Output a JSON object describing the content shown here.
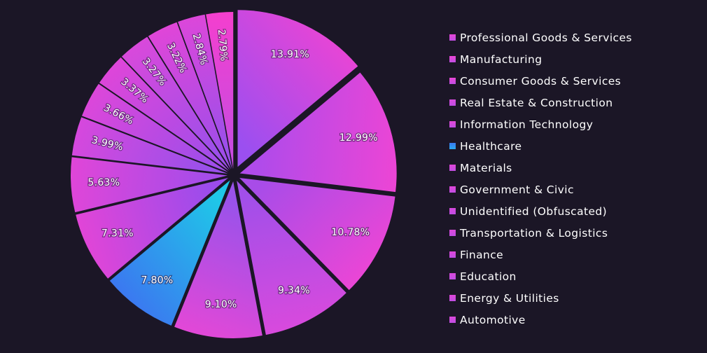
{
  "chart_data": {
    "type": "pie",
    "slices": [
      {
        "label": "Professional Goods & Services",
        "value": 13.91,
        "display": "13.91%",
        "color_from": "#9b4ff0",
        "color_to": "#e645d6"
      },
      {
        "label": "Manufacturing",
        "value": 12.99,
        "display": "12.99%",
        "color_from": "#b04bea",
        "color_to": "#ec45d5"
      },
      {
        "label": "Consumer Goods & Services",
        "value": 10.78,
        "display": "10.78%",
        "color_from": "#a84ce8",
        "color_to": "#ea46d6"
      },
      {
        "label": "Real Estate & Construction",
        "value": 9.34,
        "display": "9.34%",
        "color_from": "#a24fe9",
        "color_to": "#d84add"
      },
      {
        "label": "Information Technology",
        "value": 9.1,
        "display": "9.10%",
        "color_from": "#9a52ea",
        "color_to": "#e248d7"
      },
      {
        "label": "Healthcare",
        "value": 7.8,
        "display": "7.80%",
        "color_from": "#1fc7e8",
        "color_to": "#3b78f0"
      },
      {
        "label": "Materials",
        "value": 7.31,
        "display": "7.31%",
        "color_from": "#9b4cec",
        "color_to": "#e145d7"
      },
      {
        "label": "Government & Civic",
        "value": 5.63,
        "display": "5.63%",
        "color_from": "#a64ce9",
        "color_to": "#e046d8"
      },
      {
        "label": "Unidentified (Obfuscated)",
        "value": 3.99,
        "display": "3.99%",
        "color_from": "#9a50ea",
        "color_to": "#d648dd"
      },
      {
        "label": "Transportation & Logistics",
        "value": 3.66,
        "display": "3.66%",
        "color_from": "#a04de9",
        "color_to": "#dc47da"
      },
      {
        "label": "Finance",
        "value": 3.37,
        "display": "3.37%",
        "color_from": "#a44de9",
        "color_to": "#de46d9"
      },
      {
        "label": "Education",
        "value": 3.27,
        "display": "3.27%",
        "color_from": "#9d4fea",
        "color_to": "#d949db"
      },
      {
        "label": "Energy & Utilities",
        "value": 3.22,
        "display": "3.22%",
        "color_from": "#a14de9",
        "color_to": "#e046d8"
      },
      {
        "label": "Automotive",
        "value": 2.84,
        "display": "2.84%",
        "color_from": "#9c4fea",
        "color_to": "#dc47da"
      },
      {
        "label": "",
        "value": 2.79,
        "display": "2.79%",
        "color_from": "#c94be0",
        "color_to": "#f43fce"
      }
    ],
    "start_position": "top",
    "direction": "clockwise",
    "legend_placement": "right",
    "background": "#1b1626",
    "label_color": "#ffffff",
    "legend_swatch_color": "#c04ee3",
    "legend_swatch_color_healthcare": "#2aa8f0",
    "title": "",
    "xlabel": "",
    "ylabel": ""
  }
}
